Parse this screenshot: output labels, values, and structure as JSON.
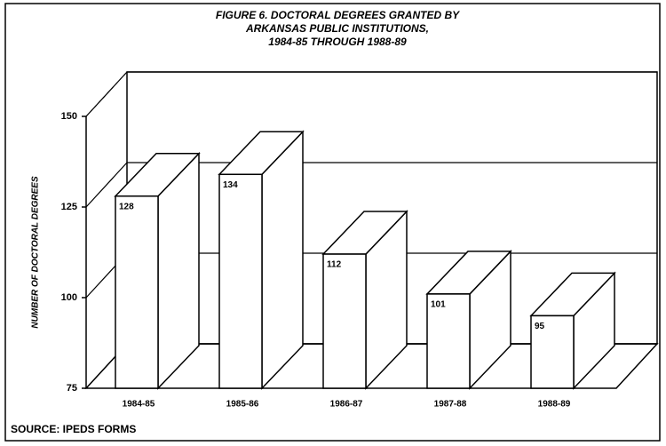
{
  "chart_data": {
    "type": "bar3d",
    "title_lines": [
      "FIGURE 6. DOCTORAL DEGREES GRANTED BY",
      "ARKANSAS PUBLIC INSTITUTIONS,",
      "1984-85 THROUGH 1988-89"
    ],
    "y_label": "NUMBER OF DOCTORAL DEGREES",
    "categories": [
      "1984-85",
      "1985-86",
      "1986-87",
      "1987-88",
      "1988-89"
    ],
    "values": [
      128,
      134,
      112,
      101,
      95
    ],
    "ylim": [
      75,
      150
    ],
    "yticks": [
      75,
      100,
      125,
      150
    ],
    "grid": true,
    "color": "#ffffff",
    "source": "SOURCE:  IPEDS FORMS"
  }
}
